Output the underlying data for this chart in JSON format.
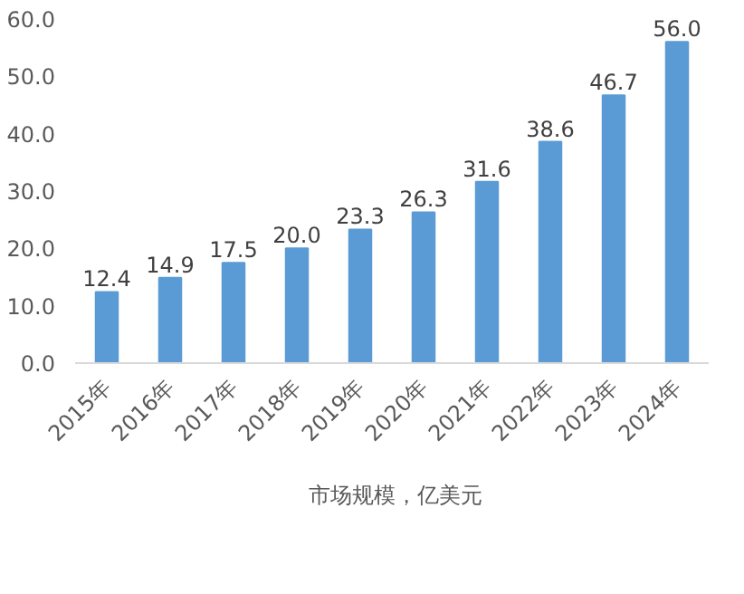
{
  "chart_data": {
    "type": "bar",
    "categories": [
      "2015年",
      "2016年",
      "2017年",
      "2018年",
      "2019年",
      "2020年",
      "2021年",
      "2022年",
      "2023年",
      "2024年"
    ],
    "series": [
      {
        "name": "市场规模，亿美元",
        "color": "#5b9bd5",
        "values": [
          12.4,
          14.9,
          17.5,
          20.0,
          23.3,
          26.3,
          31.6,
          38.6,
          46.7,
          56.0
        ],
        "value_labels": [
          "12.4",
          "14.9",
          "17.5",
          "20.0",
          "23.3",
          "26.3",
          "31.6",
          "38.6",
          "46.7",
          "56.0"
        ]
      }
    ],
    "ylim": [
      0,
      60
    ],
    "yticks": [
      {
        "value": 0,
        "label": "0.0"
      },
      {
        "value": 10,
        "label": "10.0"
      },
      {
        "value": 20,
        "label": "20.0"
      },
      {
        "value": 30,
        "label": "30.0"
      },
      {
        "value": 40,
        "label": "40.0"
      },
      {
        "value": 50,
        "label": "50.0"
      },
      {
        "value": 60,
        "label": "60.0"
      }
    ],
    "legend": "bottom"
  }
}
